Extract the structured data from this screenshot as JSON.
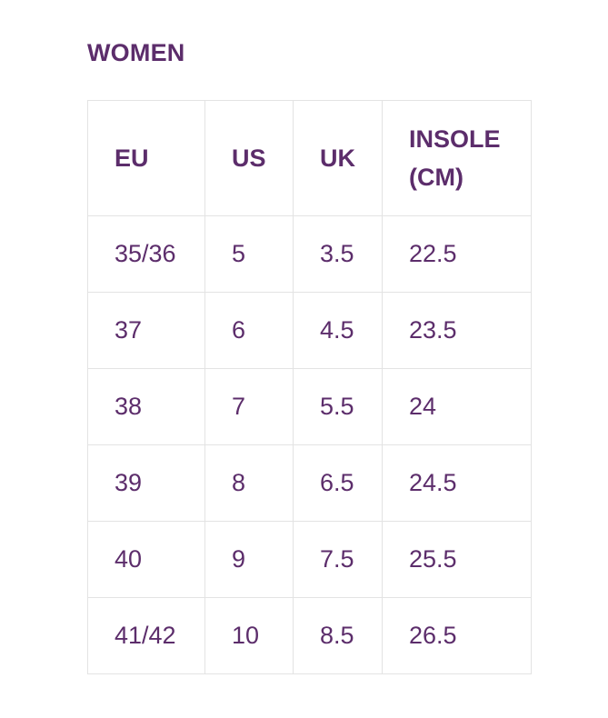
{
  "title": "WOMEN",
  "headers": {
    "eu": "EU",
    "us": "US",
    "uk": "UK",
    "insole": "INSOLE (CM)"
  },
  "rows": [
    {
      "eu": "35/36",
      "us": "5",
      "uk": "3.5",
      "insole": "22.5"
    },
    {
      "eu": "37",
      "us": "6",
      "uk": "4.5",
      "insole": "23.5"
    },
    {
      "eu": "38",
      "us": "7",
      "uk": "5.5",
      "insole": "24"
    },
    {
      "eu": "39",
      "us": "8",
      "uk": "6.5",
      "insole": "24.5"
    },
    {
      "eu": "40",
      "us": "9",
      "uk": "7.5",
      "insole": "25.5"
    },
    {
      "eu": "41/42",
      "us": "10",
      "uk": "8.5",
      "insole": "26.5"
    }
  ],
  "colors": {
    "text": "#5c2d6b",
    "border": "#e3e3e3",
    "background": "#ffffff"
  }
}
